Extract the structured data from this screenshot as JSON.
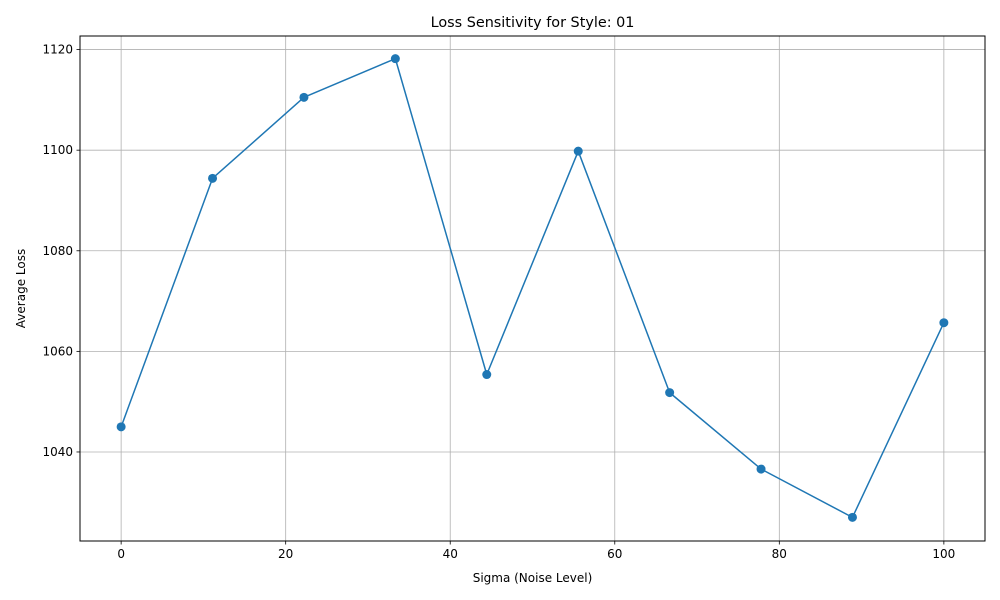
{
  "chart_data": {
    "type": "line",
    "title": "Loss Sensitivity for Style: 01",
    "xlabel": "Sigma (Noise Level)",
    "ylabel": "Average Loss",
    "xlim": [
      -5,
      105
    ],
    "ylim": [
      1022.3,
      1122.7
    ],
    "xticks": [
      0,
      20,
      40,
      60,
      80,
      100
    ],
    "yticks": [
      1040,
      1060,
      1080,
      1100,
      1120
    ],
    "grid": true,
    "series": [
      {
        "color": "#1f77b4",
        "marker": "circle",
        "x": [
          0,
          11.11,
          22.22,
          33.33,
          44.44,
          55.56,
          66.67,
          77.78,
          88.89,
          100
        ],
        "y": [
          1045.0,
          1094.4,
          1110.5,
          1118.2,
          1055.4,
          1099.8,
          1051.8,
          1036.6,
          1027.0,
          1065.7
        ]
      }
    ]
  }
}
